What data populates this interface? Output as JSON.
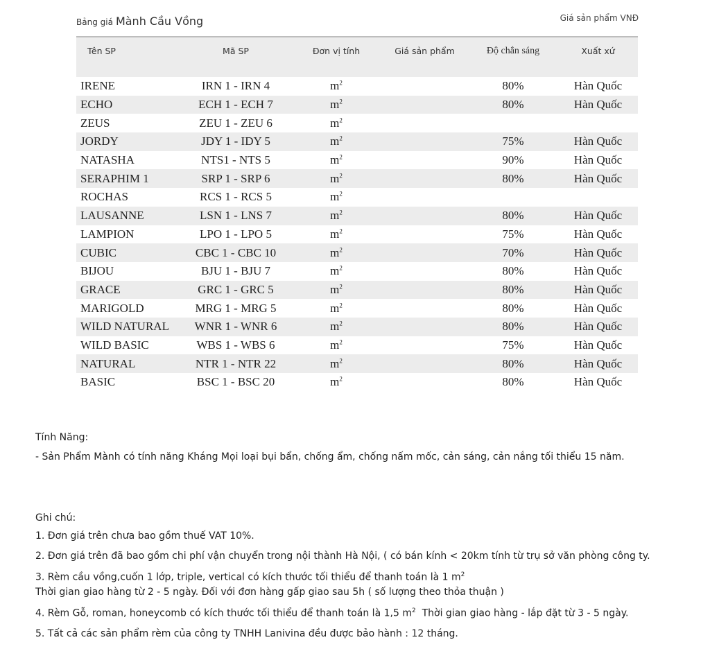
{
  "header": {
    "label": "Bảng giá",
    "name": "Mành Cầu Vồng",
    "currency_note": "Giá sản phẩm  VNĐ"
  },
  "table": {
    "columns": [
      "Tên SP",
      "Mã SP",
      "Đơn vị tính",
      "Giá sản phẩm",
      "Độ chắn sáng",
      "Xuất xứ"
    ],
    "rows": [
      {
        "name": "IRENE",
        "code": "IRN 1 - IRN 4",
        "unit": "m",
        "price": "",
        "shade": "80%",
        "origin": "Hàn Quốc"
      },
      {
        "name": "ECHO",
        "code": "ECH 1 - ECH 7",
        "unit": "m",
        "price": "",
        "shade": "80%",
        "origin": "Hàn Quốc"
      },
      {
        "name": "ZEUS",
        "code": "ZEU 1 - ZEU 6",
        "unit": "m",
        "price": "",
        "shade": "",
        "origin": ""
      },
      {
        "name": "JORDY",
        "code": "JDY 1 - IDY 5",
        "unit": "m",
        "price": "",
        "shade": "75%",
        "origin": "Hàn Quốc"
      },
      {
        "name": "NATASHA",
        "code": "NTS1 - NTS 5",
        "unit": "m",
        "price": "",
        "shade": "90%",
        "origin": "Hàn Quốc"
      },
      {
        "name": "SERAPHIM 1",
        "code": "SRP 1 - SRP 6",
        "unit": "m",
        "price": "",
        "shade": "80%",
        "origin": "Hàn Quốc"
      },
      {
        "name": "ROCHAS",
        "code": "RCS 1 - RCS 5",
        "unit": "m",
        "price": "",
        "shade": "",
        "origin": ""
      },
      {
        "name": "LAUSANNE",
        "code": "LSN 1 - LNS 7",
        "unit": "m",
        "price": "",
        "shade": "80%",
        "origin": "Hàn Quốc"
      },
      {
        "name": "LAMPION",
        "code": "LPO 1 - LPO 5",
        "unit": "m",
        "price": "",
        "shade": "75%",
        "origin": "Hàn Quốc"
      },
      {
        "name": "CUBIC",
        "code": "CBC 1 - CBC 10",
        "unit": "m",
        "price": "",
        "shade": "70%",
        "origin": "Hàn Quốc"
      },
      {
        "name": "BIJOU",
        "code": "BJU 1 - BJU 7",
        "unit": "m",
        "price": "",
        "shade": "80%",
        "origin": "Hàn Quốc"
      },
      {
        "name": "GRACE",
        "code": "GRC 1 - GRC 5",
        "unit": "m",
        "price": "",
        "shade": "80%",
        "origin": "Hàn Quốc"
      },
      {
        "name": "MARIGOLD",
        "code": "MRG 1 - MRG 5",
        "unit": "m",
        "price": "",
        "shade": "80%",
        "origin": "Hàn Quốc"
      },
      {
        "name": "WILD NATURAL",
        "code": "WNR 1 - WNR 6",
        "unit": "m",
        "price": "",
        "shade": "80%",
        "origin": "Hàn Quốc"
      },
      {
        "name": "WILD BASIC",
        "code": "WBS 1 - WBS 6",
        "unit": "m",
        "price": "",
        "shade": "75%",
        "origin": "Hàn Quốc"
      },
      {
        "name": "NATURAL",
        "code": "NTR 1 - NTR 22",
        "unit": "m",
        "price": "",
        "shade": "80%",
        "origin": "Hàn Quốc"
      },
      {
        "name": "BASIC",
        "code": "BSC 1 - BSC 20",
        "unit": "m",
        "price": "",
        "shade": "80%",
        "origin": "Hàn Quốc"
      }
    ],
    "unit_exponent": "2"
  },
  "features": {
    "title": "Tính Năng:",
    "text": "- Sản Phẩm Mành có tính năng Kháng Mọi loại bụi bẩn, chống ẩm, chống nấm mốc, cản sáng, cản nắng tối thiểu 15 năm."
  },
  "notes": {
    "title": "Ghi chú:",
    "n1": "1. Đơn giá trên chưa bao gồm thuế VAT 10%.",
    "n2": "2. Đơn giá trên đã bao gồm chi phí vận chuyển trong nội thành Hà Nội, ( có bán kính < 20km tính từ trụ sở văn phòng công ty.",
    "n3a": "3. Rèm cầu vồng,cuốn 1 lớp, triple, vertical có  kích thước tối thiểu để thanh toán là 1 m",
    "n3b": "Thời gian giao hàng từ 2 - 5 ngày. Đối với đơn hàng gấp giao sau 5h ( số lượng theo thỏa thuận )",
    "n4a": "4. Rèm Gỗ, roman, honeycomb có kích thước tối thiểu để thanh toán là 1,5 m",
    "n4b": "  Thời gian giao hàng - lắp đặt từ 3 - 5 ngày.",
    "n5": "5. Tất cả các sản phẩm rèm của công ty TNHH Lanivina đều được bảo hành : 12 tháng."
  }
}
